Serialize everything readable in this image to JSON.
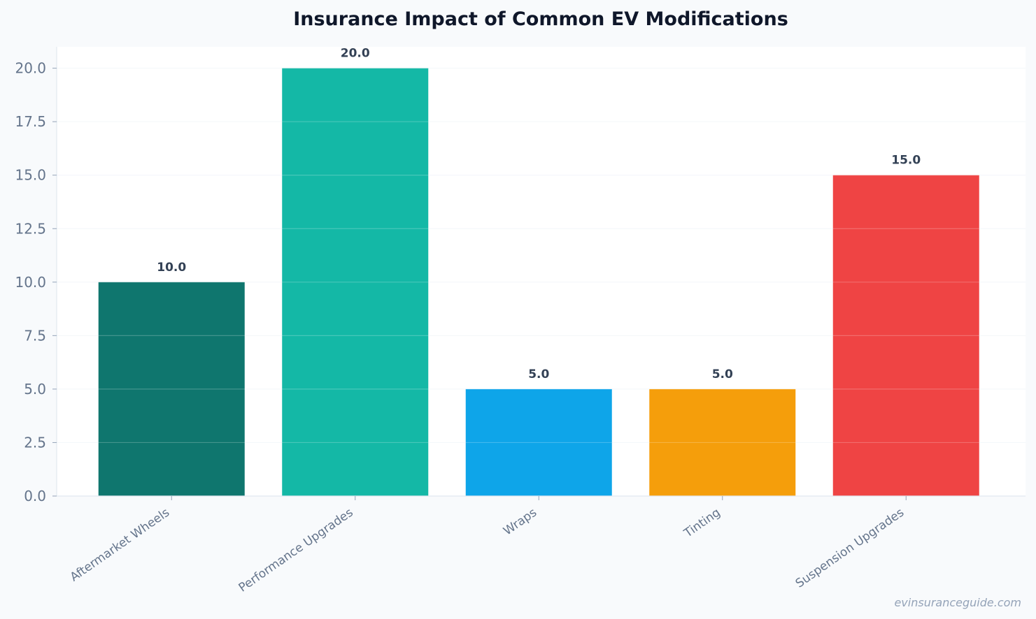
{
  "chart_data": {
    "type": "bar",
    "title": "Insurance Impact of Common EV Modifications",
    "xlabel": "",
    "ylabel": "",
    "categories": [
      "Aftermarket Wheels",
      "Performance Upgrades",
      "Wraps",
      "Tinting",
      "Suspension Upgrades"
    ],
    "values": [
      10.0,
      20.0,
      5.0,
      5.0,
      15.0
    ],
    "data_labels": [
      "10.0",
      "20.0",
      "5.0",
      "5.0",
      "15.0"
    ],
    "colors": [
      "#0f766e",
      "#14b8a6",
      "#0ea5e9",
      "#f59e0b",
      "#ef4444"
    ],
    "ylim": [
      0,
      21
    ],
    "yticks": [
      0.0,
      2.5,
      5.0,
      7.5,
      10.0,
      12.5,
      15.0,
      17.5,
      20.0
    ],
    "ytick_labels": [
      "0.0",
      "2.5",
      "5.0",
      "7.5",
      "10.0",
      "12.5",
      "15.0",
      "17.5",
      "20.0"
    ],
    "grid": true,
    "legend": "none"
  },
  "watermark": "evinsuranceguide.com"
}
